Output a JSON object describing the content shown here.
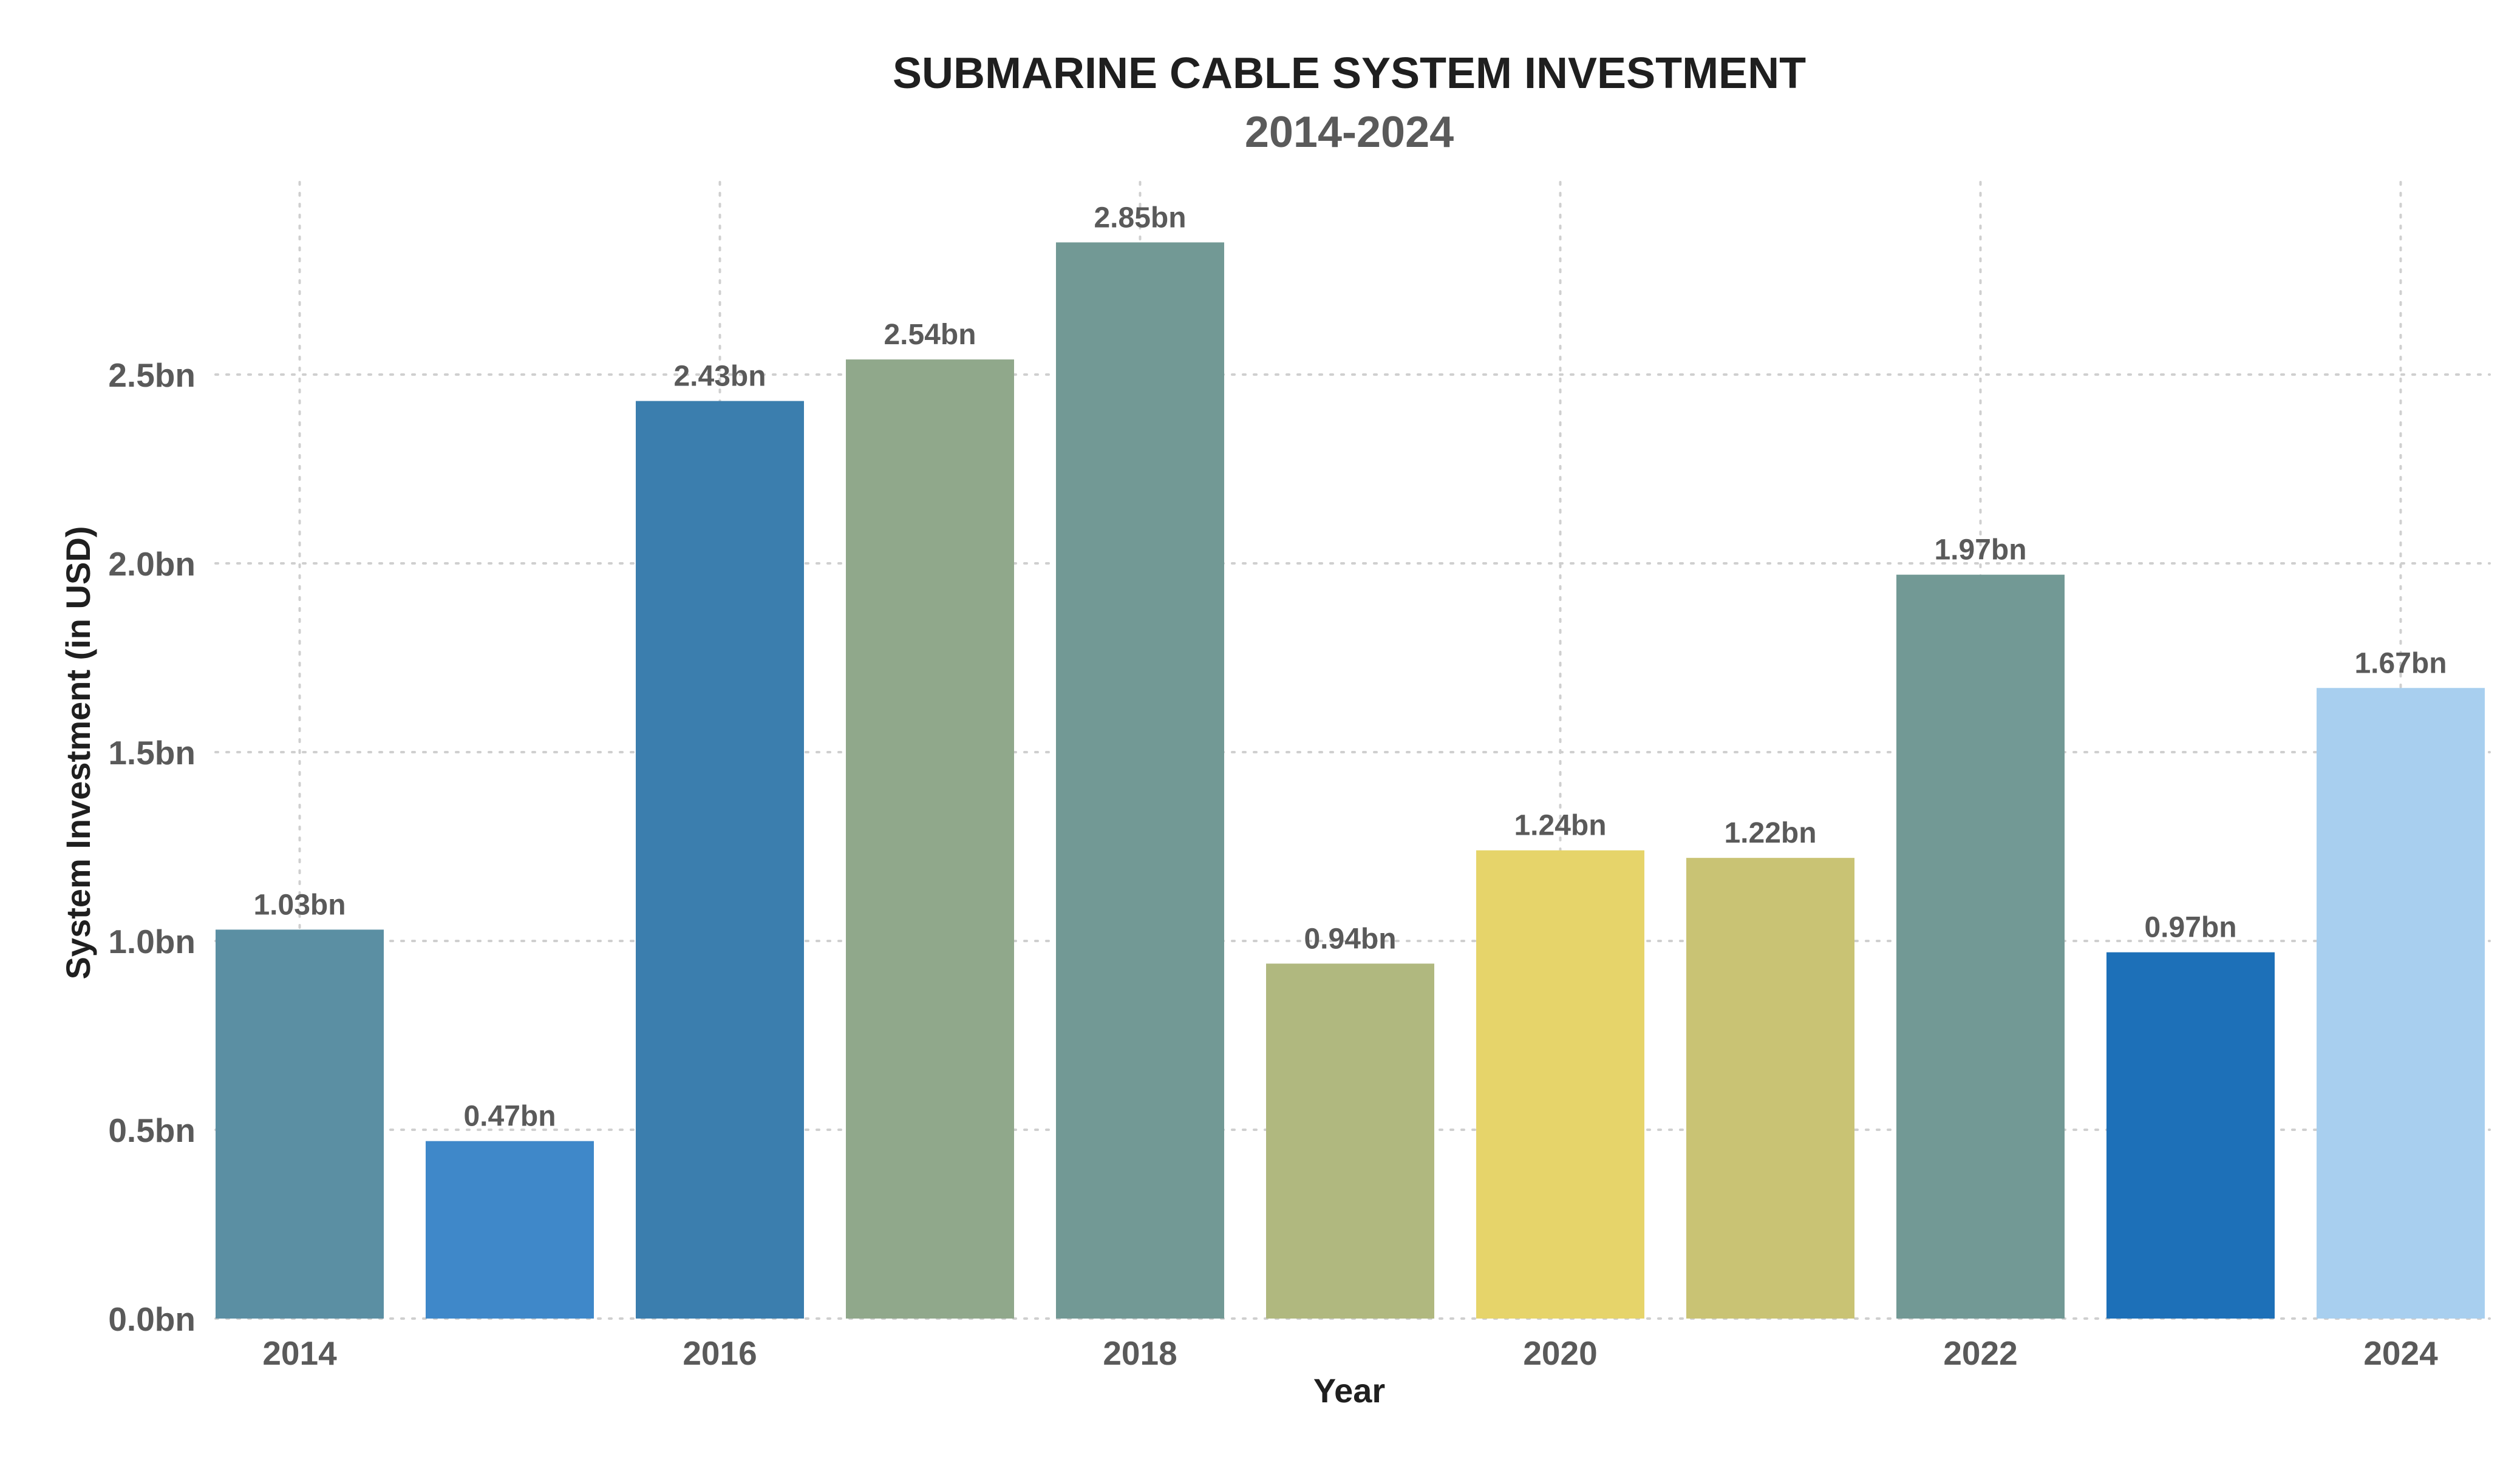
{
  "chart_data": {
    "type": "bar",
    "title": "SUBMARINE CABLE SYSTEM INVESTMENT",
    "subtitle": "2014-2024",
    "xlabel": "Year",
    "ylabel": "System Investment (in USD)",
    "categories": [
      "2014",
      "2015",
      "2016",
      "2017",
      "2018",
      "2019",
      "2020",
      "2021",
      "2022",
      "2023",
      "2024"
    ],
    "values": [
      1.03,
      0.47,
      2.43,
      2.54,
      2.85,
      0.94,
      1.24,
      1.22,
      1.97,
      0.97,
      1.67
    ],
    "data_labels": [
      "1.03bn",
      "0.47bn",
      "2.43bn",
      "2.54bn",
      "2.85bn",
      "0.94bn",
      "1.24bn",
      "1.22bn",
      "1.97bn",
      "0.97bn",
      "1.67bn"
    ],
    "colors": [
      "#5b8fa3",
      "#3f88c9",
      "#3b7eae",
      "#90a88b",
      "#729995",
      "#b0b87f",
      "#e6d46a",
      "#c9c374",
      "#729995",
      "#1d70b8",
      "#a8cfef"
    ],
    "ylim": [
      0,
      3.0
    ],
    "y_ticks": [
      0,
      0.5,
      1.0,
      1.5,
      2.0,
      2.5
    ],
    "y_tick_labels": [
      "0.0bn",
      "0.5bn",
      "1.0bn",
      "1.5bn",
      "2.0bn",
      "2.5bn"
    ],
    "x_tick_labels": [
      "2014",
      "",
      "2016",
      "",
      "2018",
      "",
      "2020",
      "",
      "2022",
      "",
      "2024"
    ],
    "grid": true,
    "legend": "none"
  }
}
